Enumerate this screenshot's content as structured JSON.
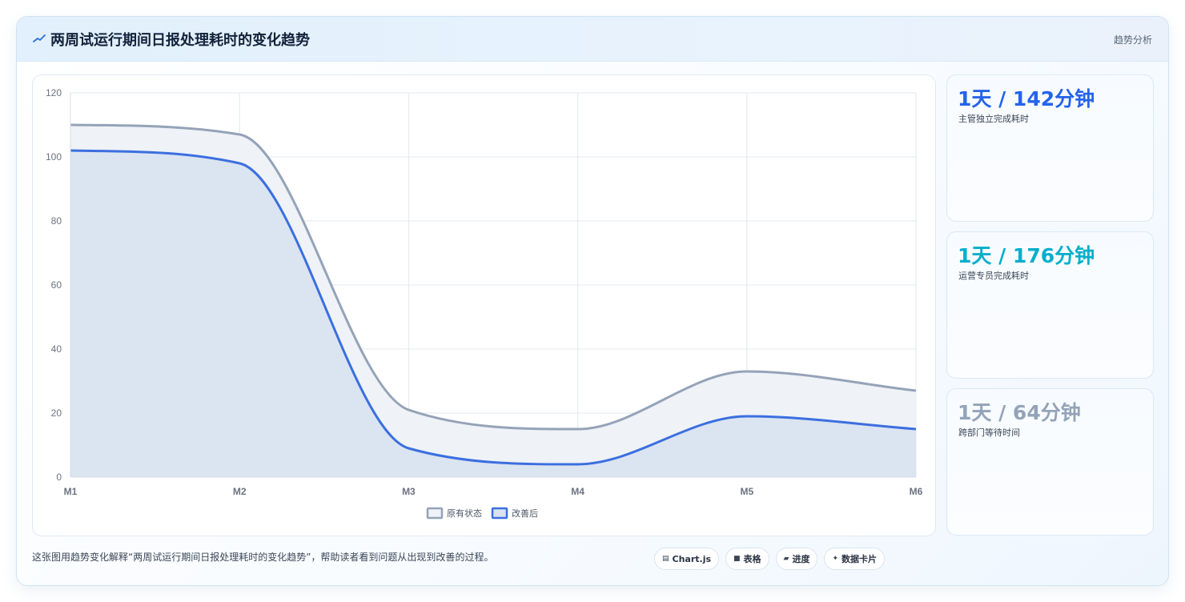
{
  "header": {
    "title": "两周试运行期间日报处理耗时的变化趋势",
    "badge": "趋势分析",
    "icon": "trend-line-icon"
  },
  "chart_data": {
    "type": "area",
    "categories": [
      "M1",
      "M2",
      "M3",
      "M4",
      "M5",
      "M6"
    ],
    "ylim": [
      0,
      120
    ],
    "yticks": [
      0,
      20,
      40,
      60,
      80,
      100,
      120
    ],
    "grid": true,
    "legend_position": "bottom",
    "series": [
      {
        "name": "原有状态",
        "values": [
          110,
          107,
          21,
          15,
          33,
          27
        ],
        "color": "#94a3b8",
        "fill": "#eff2f6"
      },
      {
        "name": "改善后",
        "values": [
          102,
          98,
          9,
          4,
          19,
          15
        ],
        "color": "#3b6fe0",
        "fill": "#d8e2f1"
      }
    ]
  },
  "kpis": [
    {
      "value": "1天 / 142分钟",
      "label": "主管独立完成耗时",
      "color": "#2563eb"
    },
    {
      "value": "1天 / 176分钟",
      "label": "运营专员完成耗时",
      "color": "#06aecb"
    },
    {
      "value": "1天 / 64分钟",
      "label": "跨部门等待时间",
      "color": "#94a3b8"
    }
  ],
  "footer": {
    "caption": "这张图用趋势变化解释“两周试运行期间日报处理耗时的变化趋势”，帮助读者看到问题从出现到改善的过程。",
    "chips": [
      {
        "icon": "chart-icon",
        "glyph": "▤",
        "label": "Chart.js"
      },
      {
        "icon": "table-icon",
        "glyph": "■",
        "label": "表格"
      },
      {
        "icon": "progress-icon",
        "glyph": "▰",
        "label": "进度"
      },
      {
        "icon": "sparkle-icon",
        "glyph": "✦",
        "label": "数据卡片"
      }
    ]
  }
}
